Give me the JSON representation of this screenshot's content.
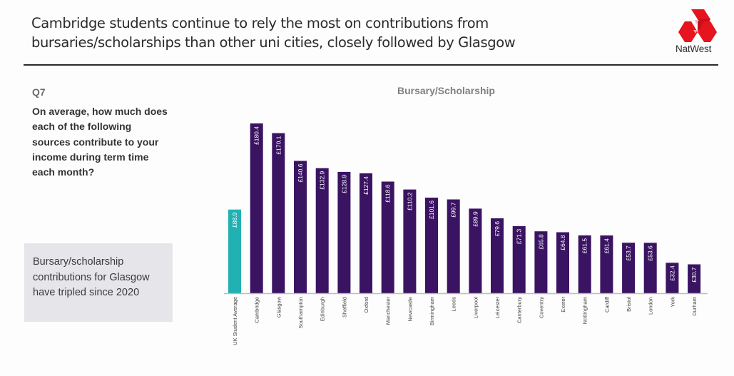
{
  "header": {
    "headline_lines": [
      "Cambridge students continue to rely the most on contributions from",
      "bursaries/scholarships than other uni cities, closely followed by Glasgow"
    ],
    "brand": "NatWest",
    "brand_color": "#e5141f"
  },
  "sidebar": {
    "question_number": "Q7",
    "question": "On average, how much does each of the following sources contribute to your income during term time each month?",
    "callout": "Bursary/scholarship contributions for Glasgow have tripled since 2020"
  },
  "colors": {
    "highlight_bar": "#22b1b3",
    "bar": "#3a1462",
    "axis": "#bdbdbd"
  },
  "chart_data": {
    "type": "bar",
    "title": "Bursary/Scholarship",
    "xlabel": "",
    "ylabel": "",
    "currency": "£",
    "ylim": [
      0,
      180.4
    ],
    "grid": false,
    "legend": "none",
    "highlight_category": "UK Student Average",
    "categories": [
      "UK Student Average",
      "Cambridge",
      "Glasgow",
      "Southampton",
      "Edinburgh",
      "Sheffield",
      "Oxford",
      "Manchester",
      "Newcastle",
      "Birmingham",
      "Leeds",
      "Liverpool",
      "Leicester",
      "Canterbury",
      "Coventry",
      "Exeter",
      "Nottingham",
      "Cardiff",
      "Bristol",
      "London",
      "York",
      "Durham"
    ],
    "values": [
      88.9,
      180.4,
      170.1,
      140.6,
      132.9,
      128.9,
      127.4,
      118.6,
      110.2,
      101.6,
      99.7,
      89.9,
      79.6,
      71.3,
      65.8,
      64.8,
      61.5,
      61.4,
      53.7,
      53.6,
      32.4,
      30.7
    ],
    "data_labels": [
      "£88.9",
      "£180.4",
      "£170.1",
      "£140.6",
      "£132.9",
      "£128.9",
      "£127.4",
      "£118.6",
      "£110.2",
      "£101.6",
      "£99.7",
      "£89.9",
      "£79.6",
      "£71.3",
      "£65.8",
      "£64.8",
      "£61.5",
      "£61.4",
      "£53.7",
      "£53.6",
      "£32.4",
      "£30.7"
    ]
  }
}
